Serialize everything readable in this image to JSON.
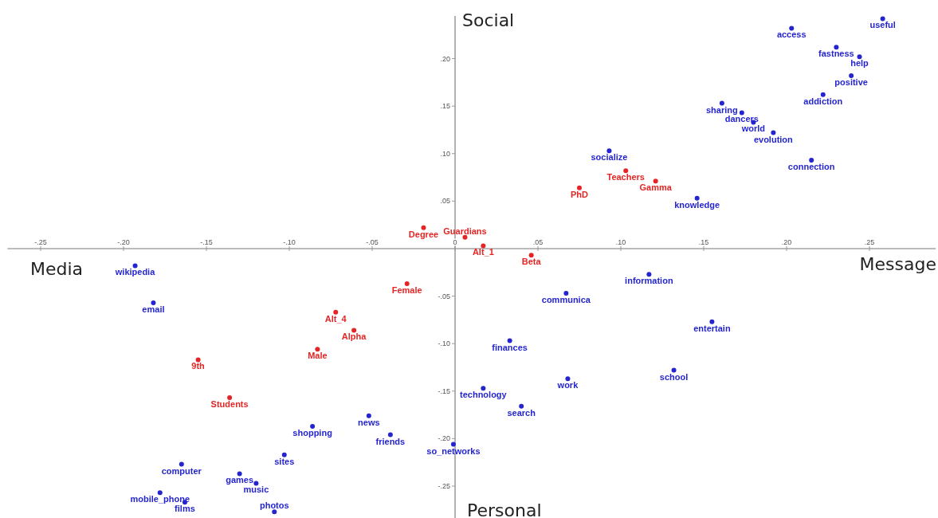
{
  "chart_data": {
    "type": "scatter",
    "marker": "circle",
    "xlim": [
      -0.27,
      0.29
    ],
    "ylim": [
      -0.285,
      0.245
    ],
    "xticks": [
      {
        "value": -0.25,
        "label": "-.25"
      },
      {
        "value": -0.2,
        "label": "-.20"
      },
      {
        "value": -0.15,
        "label": "-.15"
      },
      {
        "value": -0.1,
        "label": "-.10"
      },
      {
        "value": -0.05,
        "label": "-.05"
      },
      {
        "value": 0,
        "label": "0"
      },
      {
        "value": 0.05,
        "label": ".05"
      },
      {
        "value": 0.1,
        "label": ".10"
      },
      {
        "value": 0.15,
        "label": ".15"
      },
      {
        "value": 0.2,
        "label": ".20"
      },
      {
        "value": 0.25,
        "label": ".25"
      }
    ],
    "yticks": [
      {
        "value": 0.2,
        "label": ".20"
      },
      {
        "value": 0.15,
        "label": ".15"
      },
      {
        "value": 0.1,
        "label": ".10"
      },
      {
        "value": 0.05,
        "label": ".05"
      },
      {
        "value": -0.05,
        "label": "-.05"
      },
      {
        "value": -0.1,
        "label": "-.10"
      },
      {
        "value": -0.15,
        "label": "-.15"
      },
      {
        "value": -0.2,
        "label": "-.20"
      },
      {
        "value": -0.25,
        "label": "-.25"
      }
    ],
    "series": [
      {
        "name": "access",
        "color": "#2525d0",
        "x": [
          0.203
        ],
        "values": [
          0.232
        ]
      },
      {
        "name": "useful",
        "color": "#2525d0",
        "x": [
          0.258
        ],
        "values": [
          0.242
        ]
      },
      {
        "name": "fastness",
        "color": "#2525d0",
        "x": [
          0.23
        ],
        "values": [
          0.212
        ]
      },
      {
        "name": "help",
        "color": "#2525d0",
        "x": [
          0.244
        ],
        "values": [
          0.202
        ]
      },
      {
        "name": "positive",
        "color": "#2525d0",
        "x": [
          0.239
        ],
        "values": [
          0.182
        ]
      },
      {
        "name": "addiction",
        "color": "#2525d0",
        "x": [
          0.222
        ],
        "values": [
          0.162
        ]
      },
      {
        "name": "sharing",
        "color": "#2525d0",
        "x": [
          0.161
        ],
        "values": [
          0.153
        ]
      },
      {
        "name": "dancers",
        "color": "#2525d0",
        "x": [
          0.173
        ],
        "values": [
          0.143
        ]
      },
      {
        "name": "world",
        "color": "#2525d0",
        "x": [
          0.18
        ],
        "values": [
          0.133
        ]
      },
      {
        "name": "evolution",
        "color": "#2525d0",
        "x": [
          0.192
        ],
        "values": [
          0.122
        ]
      },
      {
        "name": "socialize",
        "color": "#2525d0",
        "x": [
          0.093
        ],
        "values": [
          0.103
        ]
      },
      {
        "name": "connection",
        "color": "#2525d0",
        "x": [
          0.215
        ],
        "values": [
          0.093
        ]
      },
      {
        "name": "knowledge",
        "color": "#2525d0",
        "x": [
          0.146
        ],
        "values": [
          0.053
        ]
      },
      {
        "name": "information",
        "color": "#2525d0",
        "x": [
          0.117
        ],
        "values": [
          -0.027
        ]
      },
      {
        "name": "communica",
        "color": "#2525d0",
        "x": [
          0.067
        ],
        "values": [
          -0.047
        ]
      },
      {
        "name": "entertain",
        "color": "#2525d0",
        "x": [
          0.155
        ],
        "values": [
          -0.077
        ]
      },
      {
        "name": "finances",
        "color": "#2525d0",
        "x": [
          0.033
        ],
        "values": [
          -0.097
        ]
      },
      {
        "name": "school",
        "color": "#2525d0",
        "x": [
          0.132
        ],
        "values": [
          -0.128
        ]
      },
      {
        "name": "work",
        "color": "#2525d0",
        "x": [
          0.068
        ],
        "values": [
          -0.137
        ]
      },
      {
        "name": "technology",
        "color": "#2525d0",
        "x": [
          0.017
        ],
        "values": [
          -0.147
        ]
      },
      {
        "name": "search",
        "color": "#2525d0",
        "x": [
          0.04
        ],
        "values": [
          -0.166
        ]
      },
      {
        "name": "so_networks",
        "color": "#2525d0",
        "x": [
          -0.001
        ],
        "values": [
          -0.206
        ]
      },
      {
        "name": "news",
        "color": "#2525d0",
        "x": [
          -0.052
        ],
        "values": [
          -0.176
        ]
      },
      {
        "name": "friends",
        "color": "#2525d0",
        "x": [
          -0.039
        ],
        "values": [
          -0.196
        ]
      },
      {
        "name": "shopping",
        "color": "#2525d0",
        "x": [
          -0.086
        ],
        "values": [
          -0.187
        ]
      },
      {
        "name": "sites",
        "color": "#2525d0",
        "x": [
          -0.103
        ],
        "values": [
          -0.217
        ]
      },
      {
        "name": "computer",
        "color": "#2525d0",
        "x": [
          -0.165
        ],
        "values": [
          -0.227
        ]
      },
      {
        "name": "games",
        "color": "#2525d0",
        "x": [
          -0.13
        ],
        "values": [
          -0.237
        ]
      },
      {
        "name": "music",
        "color": "#2525d0",
        "x": [
          -0.12
        ],
        "values": [
          -0.247
        ]
      },
      {
        "name": "mobile_phone",
        "color": "#2525d0",
        "x": [
          -0.178
        ],
        "values": [
          -0.257
        ]
      },
      {
        "name": "films",
        "color": "#2525d0",
        "x": [
          -0.163
        ],
        "values": [
          -0.267
        ]
      },
      {
        "name": "photos",
        "color": "#2525d0",
        "x": [
          -0.109
        ],
        "values": [
          -0.277
        ]
      },
      {
        "name": "wikipedia",
        "color": "#2525d0",
        "x": [
          -0.193
        ],
        "values": [
          -0.018
        ]
      },
      {
        "name": "email",
        "color": "#2525d0",
        "x": [
          -0.182
        ],
        "values": [
          -0.057
        ]
      },
      {
        "name": "Degree",
        "color": "#e52525",
        "x": [
          -0.019
        ],
        "values": [
          0.022
        ]
      },
      {
        "name": "Guardians",
        "color": "#e52525",
        "x": [
          0.006
        ],
        "values": [
          0.012
        ]
      },
      {
        "name": "Alt_1",
        "color": "#e52525",
        "x": [
          0.017
        ],
        "values": [
          0.003
        ]
      },
      {
        "name": "Beta",
        "color": "#e52525",
        "x": [
          0.046
        ],
        "values": [
          -0.007
        ]
      },
      {
        "name": "PhD",
        "color": "#e52525",
        "x": [
          0.075
        ],
        "values": [
          0.064
        ]
      },
      {
        "name": "Teachers",
        "color": "#e52525",
        "x": [
          0.103
        ],
        "values": [
          0.082
        ]
      },
      {
        "name": "Gamma",
        "color": "#e52525",
        "x": [
          0.121
        ],
        "values": [
          0.071
        ]
      },
      {
        "name": "Female",
        "color": "#e52525",
        "x": [
          -0.029
        ],
        "values": [
          -0.037
        ]
      },
      {
        "name": "Alt_4",
        "color": "#e52525",
        "x": [
          -0.072
        ],
        "values": [
          -0.067
        ]
      },
      {
        "name": "Alpha",
        "color": "#e52525",
        "x": [
          -0.061
        ],
        "values": [
          -0.086
        ]
      },
      {
        "name": "Male",
        "color": "#e52525",
        "x": [
          -0.083
        ],
        "values": [
          -0.106
        ]
      },
      {
        "name": "9th",
        "color": "#e52525",
        "x": [
          -0.155
        ],
        "values": [
          -0.117
        ]
      },
      {
        "name": "Students",
        "color": "#e52525",
        "x": [
          -0.136
        ],
        "values": [
          -0.157
        ]
      }
    ],
    "annotations": [
      "Social",
      "Personal",
      "Media",
      "Message"
    ]
  }
}
